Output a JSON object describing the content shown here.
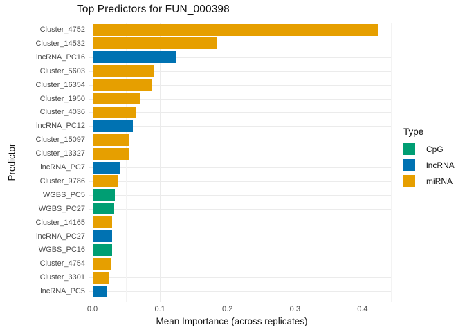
{
  "title": "Top Predictors for FUN_000398",
  "chart_data": {
    "type": "bar",
    "orientation": "horizontal",
    "title": "Top Predictors for FUN_000398",
    "xlabel": "Mean Importance (across replicates)",
    "ylabel": "Predictor",
    "xlim": [
      0,
      0.445
    ],
    "x_ticks": [
      0.0,
      0.1,
      0.2,
      0.3,
      0.4
    ],
    "x_minor_ticks": [
      0.05,
      0.15,
      0.25,
      0.35
    ],
    "grid": true,
    "legend_title": "Type",
    "legend_position": "right",
    "types": [
      {
        "name": "CpG",
        "color": "#009E73"
      },
      {
        "name": "lncRNA",
        "color": "#0072B2"
      },
      {
        "name": "miRNA",
        "color": "#E69F00"
      }
    ],
    "bars": [
      {
        "label": "Cluster_4752",
        "type": "miRNA",
        "value": 0.423
      },
      {
        "label": "Cluster_14532",
        "type": "miRNA",
        "value": 0.185
      },
      {
        "label": "lncRNA_PC16",
        "type": "lncRNA",
        "value": 0.123
      },
      {
        "label": "Cluster_5603",
        "type": "miRNA",
        "value": 0.091
      },
      {
        "label": "Cluster_16354",
        "type": "miRNA",
        "value": 0.088
      },
      {
        "label": "Cluster_1950",
        "type": "miRNA",
        "value": 0.071
      },
      {
        "label": "Cluster_4036",
        "type": "miRNA",
        "value": 0.065
      },
      {
        "label": "lncRNA_PC12",
        "type": "lncRNA",
        "value": 0.06
      },
      {
        "label": "Cluster_15097",
        "type": "miRNA",
        "value": 0.055
      },
      {
        "label": "Cluster_13327",
        "type": "miRNA",
        "value": 0.054
      },
      {
        "label": "lncRNA_PC7",
        "type": "lncRNA",
        "value": 0.04
      },
      {
        "label": "Cluster_9786",
        "type": "miRNA",
        "value": 0.037
      },
      {
        "label": "WGBS_PC5",
        "type": "CpG",
        "value": 0.033
      },
      {
        "label": "WGBS_PC27",
        "type": "CpG",
        "value": 0.032
      },
      {
        "label": "Cluster_14165",
        "type": "miRNA",
        "value": 0.029
      },
      {
        "label": "lncRNA_PC27",
        "type": "lncRNA",
        "value": 0.029
      },
      {
        "label": "WGBS_PC16",
        "type": "CpG",
        "value": 0.029
      },
      {
        "label": "Cluster_4754",
        "type": "miRNA",
        "value": 0.027
      },
      {
        "label": "Cluster_3301",
        "type": "miRNA",
        "value": 0.025
      },
      {
        "label": "lncRNA_PC5",
        "type": "lncRNA",
        "value": 0.022
      }
    ]
  },
  "colors": {
    "background": "#ffffff",
    "grid_major": "#ebebeb",
    "grid_minor": "#f3f3f3",
    "axis_text": "#4d4d4d",
    "title_text": "#111111"
  }
}
